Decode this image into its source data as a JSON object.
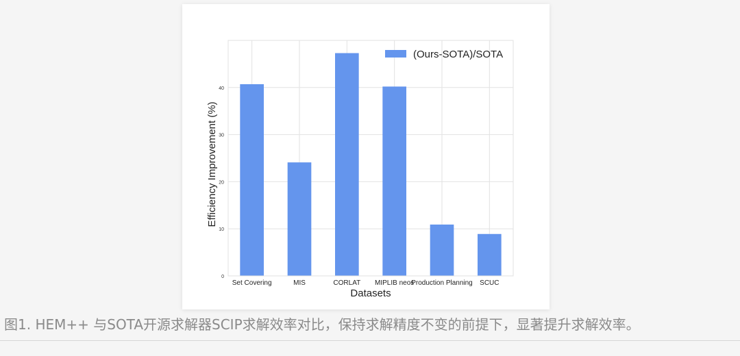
{
  "chart_data": {
    "type": "bar",
    "categories": [
      "Set Covering",
      "MIS",
      "CORLAT",
      "MIPLIB neos",
      "Production Planning",
      "SCUC"
    ],
    "series": [
      {
        "name": "(Ours-SOTA)/SOTA",
        "values": [
          40.7,
          24.1,
          47.3,
          40.2,
          10.9,
          8.9
        ]
      }
    ],
    "xlabel": "Datasets",
    "ylabel": "Efficiency Improvement (%)",
    "ylim": [
      0,
      50
    ],
    "yticks": [
      0,
      10,
      20,
      30,
      40
    ],
    "grid": true,
    "legend_position": "top-right",
    "bar_color": "#6495ed"
  },
  "caption": {
    "text": "图1. HEM++ 与SOTA开源求解器SCIP求解效率对比，保持求解精度不变的前提下，显著提升求解效率。"
  }
}
